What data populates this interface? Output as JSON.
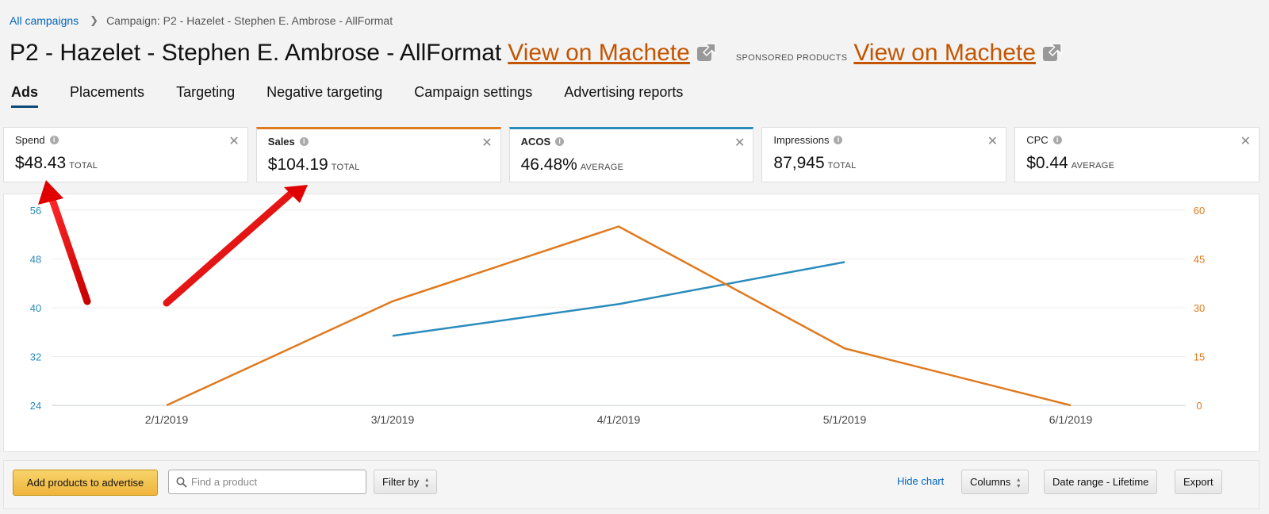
{
  "breadcrumb": {
    "root": "All campaigns",
    "current": "Campaign: P2 - Hazelet - Stephen E. Ambrose - AllFormat"
  },
  "header": {
    "title": "P2 - Hazelet - Stephen E. Ambrose - AllFormat",
    "link1": "View on Machete",
    "sponsored_label": "SPONSORED PRODUCTS",
    "link2": "View on Machete"
  },
  "tabs": [
    {
      "label": "Ads",
      "active": true
    },
    {
      "label": "Placements"
    },
    {
      "label": "Targeting"
    },
    {
      "label": "Negative targeting"
    },
    {
      "label": "Campaign settings"
    },
    {
      "label": "Advertising reports"
    }
  ],
  "metrics": [
    {
      "label": "Spend",
      "value": "$48.43",
      "suffix": "TOTAL"
    },
    {
      "label": "Sales",
      "value": "$104.19",
      "suffix": "TOTAL",
      "accent": "#e07a1f"
    },
    {
      "label": "ACOS",
      "value": "46.48%",
      "suffix": "AVERAGE",
      "accent": "#2a8bbd"
    },
    {
      "label": "Impressions",
      "value": "87,945",
      "suffix": "TOTAL"
    },
    {
      "label": "CPC",
      "value": "$0.44",
      "suffix": "AVERAGE"
    }
  ],
  "chart_data": {
    "type": "line",
    "x": [
      "2/1/2019",
      "3/1/2019",
      "4/1/2019",
      "5/1/2019",
      "6/1/2019"
    ],
    "y_left": {
      "ticks": [
        24,
        32,
        40,
        48,
        56
      ],
      "range": [
        24,
        56
      ],
      "color": "#2a8bbd"
    },
    "y_right": {
      "ticks": [
        0,
        15,
        30,
        45,
        60
      ],
      "range": [
        0,
        60
      ],
      "color": "#e07a1f"
    },
    "series": [
      {
        "axis": "left",
        "color": "#2a8bbd",
        "values": [
          null,
          35.4,
          40.6,
          47.5,
          null
        ]
      },
      {
        "axis": "right",
        "color": "#e07a1f",
        "values": [
          0,
          32,
          55,
          17.5,
          0
        ]
      }
    ],
    "grid": true
  },
  "toolbar": {
    "add_label": "Add products to advertise",
    "search_placeholder": "Find a product",
    "filter_label": "Filter by",
    "hide_chart": "Hide chart",
    "columns_label": "Columns",
    "date_range": "Date range - Lifetime",
    "export_label": "Export"
  },
  "colors": {
    "accent_orange": "#c45500",
    "link_blue": "#0066c0",
    "annotation_red": "#e00000"
  },
  "icons": {
    "external_link": "external-link-icon",
    "info": "info-icon",
    "close": "close-icon",
    "search": "search-icon",
    "annotation": "red-arrow-annotation"
  }
}
